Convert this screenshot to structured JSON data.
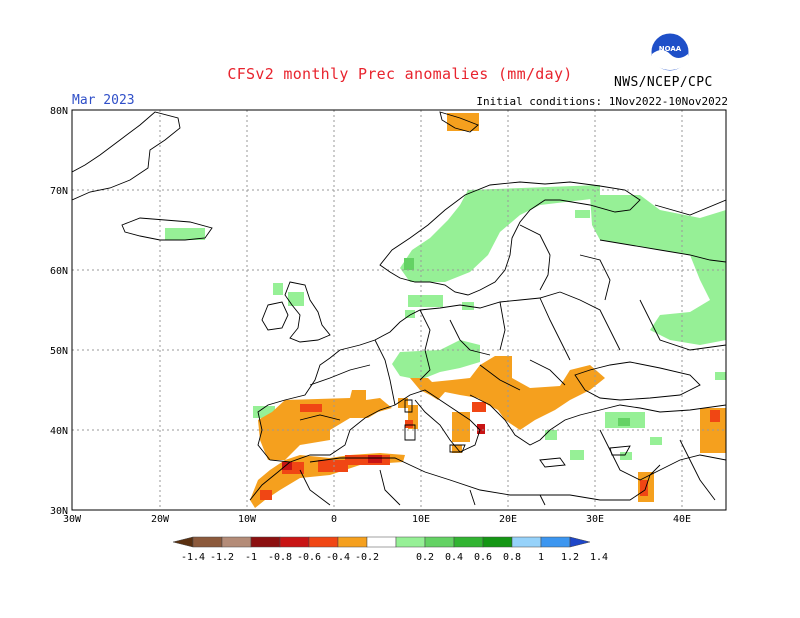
{
  "title": "CFSv2 monthly Prec anomalies (mm/day)",
  "valid_month": "Mar 2023",
  "initial_conditions": "Initial conditions: 1Nov2022-10Nov2022",
  "agency": "NWS/NCEP/CPC",
  "logo_text": "NOAA",
  "lat_labels": [
    "80N",
    "70N",
    "60N",
    "50N",
    "40N",
    "30N"
  ],
  "lon_labels": [
    "30W",
    "20W",
    "10W",
    "0",
    "10E",
    "20E",
    "30E",
    "40E"
  ],
  "colorbar": {
    "labels": [
      "-1.4",
      "-1.2",
      "-1",
      "-0.8",
      "-0.6",
      "-0.4",
      "-0.2",
      "0.2",
      "0.4",
      "0.6",
      "0.8",
      "1",
      "1.2",
      "1.4"
    ],
    "colors": [
      "#5a3010",
      "#8c5a3c",
      "#b48c78",
      "#8c1010",
      "#c81414",
      "#f04614",
      "#f5a01e",
      "#ffffff",
      "#96f096",
      "#64d264",
      "#32b432",
      "#149614",
      "#96d2fa",
      "#3c96f0",
      "#1e46c8"
    ]
  },
  "colors": {
    "dry_light": "#f5a01e",
    "dry_mid": "#f04614",
    "dry_strong": "#c81414",
    "wet_light": "#96f096",
    "wet_mid": "#64d264",
    "wet_strong": "#32b432"
  }
}
